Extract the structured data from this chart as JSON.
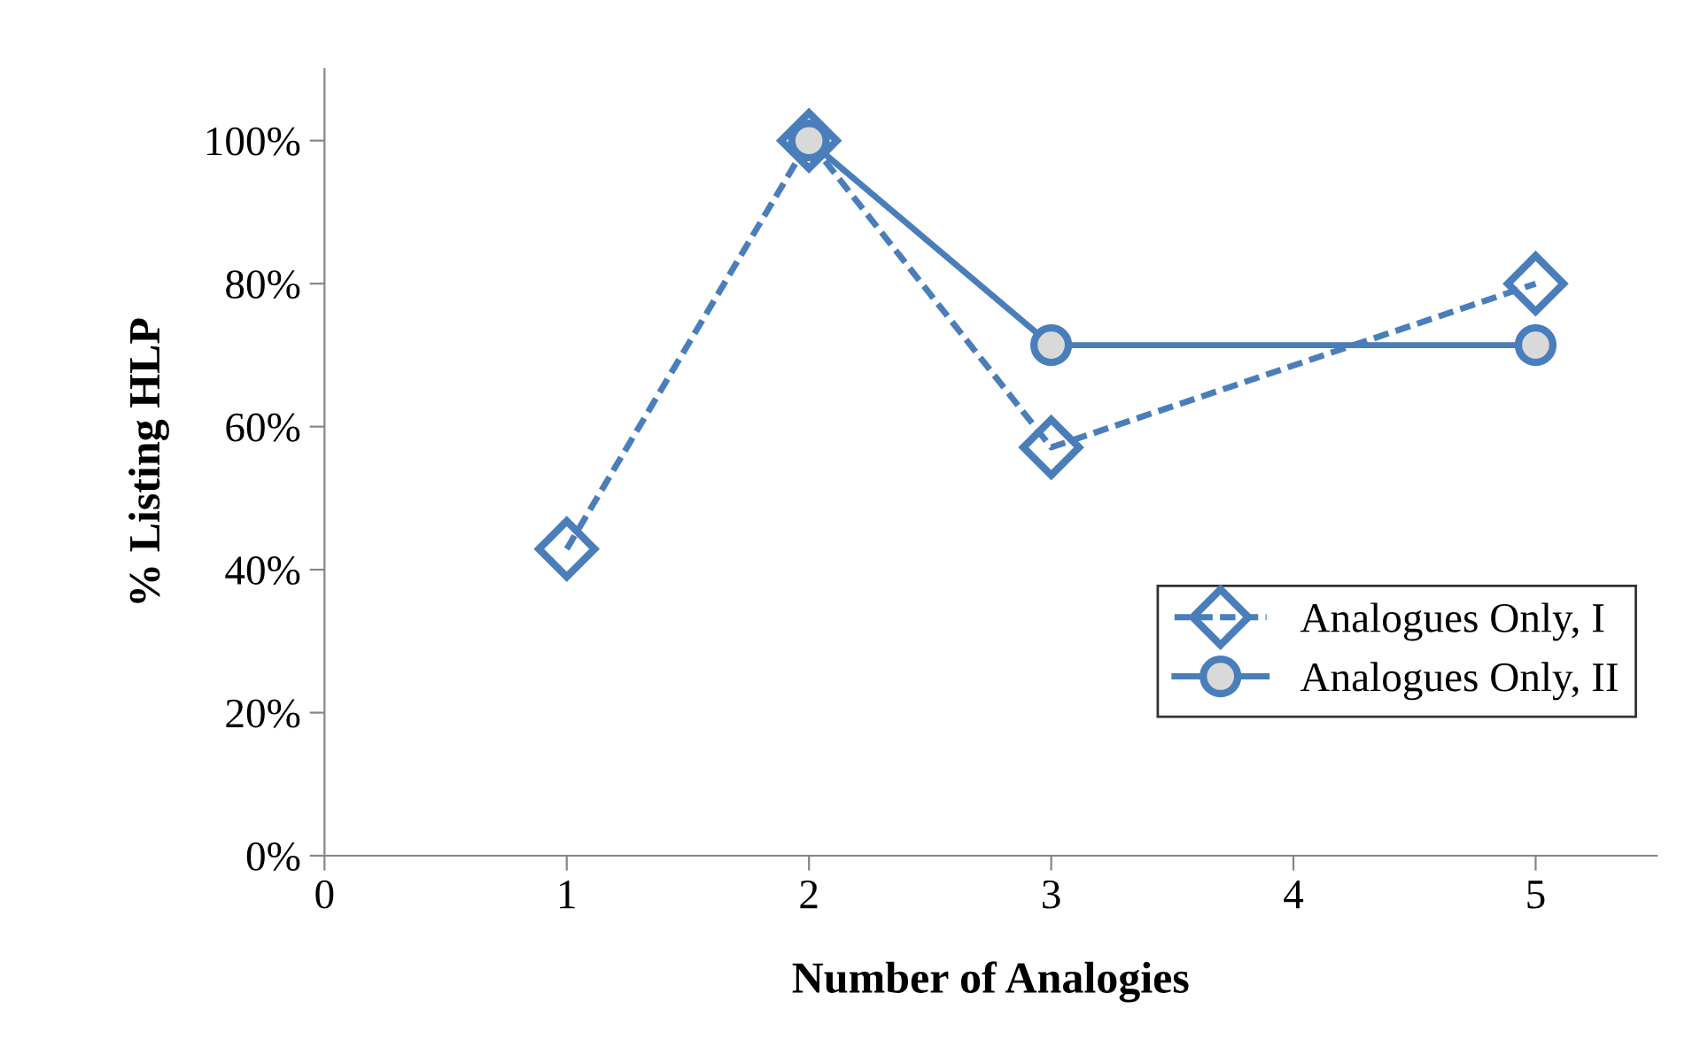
{
  "chart_data": {
    "type": "line",
    "xlabel": "Number of Analogies",
    "ylabel": "% Listing HLP",
    "xlim": [
      0,
      5.5
    ],
    "xticks": [
      0,
      1,
      2,
      3,
      4,
      5
    ],
    "ylim": [
      0,
      110
    ],
    "yticks": [
      {
        "value": 0,
        "label": "0%"
      },
      {
        "value": 20,
        "label": "20%"
      },
      {
        "value": 40,
        "label": "40%"
      },
      {
        "value": 60,
        "label": "60%"
      },
      {
        "value": 80,
        "label": "80%"
      },
      {
        "value": 100,
        "label": "100%"
      }
    ],
    "grid": false,
    "legend": "lower right",
    "series": [
      {
        "name": "Analogues Only, I",
        "color": "#4a7ebb",
        "x": [
          1,
          2,
          3,
          5
        ],
        "values": [
          42.9,
          100,
          57.1,
          80
        ],
        "marker": "diamond",
        "line_style": "dashed"
      },
      {
        "name": "Analogues Only, II",
        "color": "#4a7ebb",
        "x": [
          2,
          3,
          5
        ],
        "values": [
          100,
          71.4,
          71.4
        ],
        "marker": "circle",
        "line_style": "solid"
      }
    ]
  }
}
